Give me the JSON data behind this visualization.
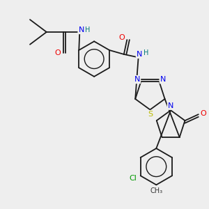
{
  "background_color": "#eeeeee",
  "bond_color": "#1a1a1a",
  "figsize": [
    3.0,
    3.0
  ],
  "dpi": 100,
  "atom_colors": {
    "N": "#0000ee",
    "O": "#ee0000",
    "S": "#bbbb00",
    "Cl": "#009900",
    "C": "#1a1a1a",
    "H": "#007777"
  },
  "lw": 1.3
}
